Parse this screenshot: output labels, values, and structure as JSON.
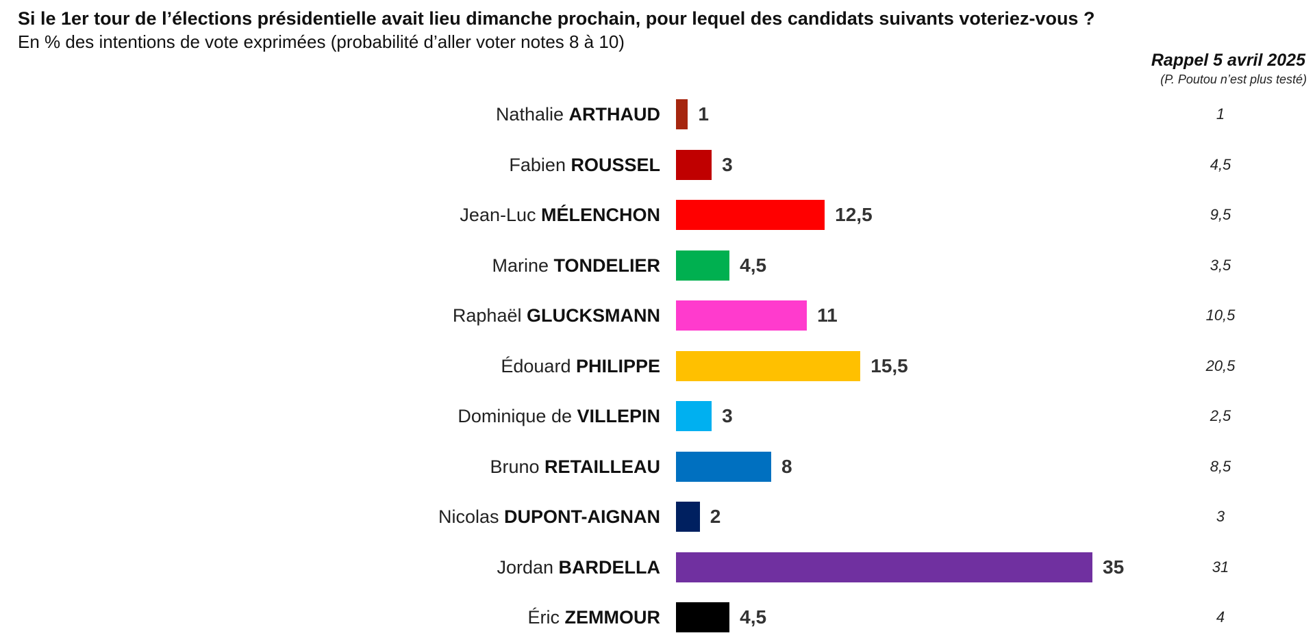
{
  "chart_data": {
    "type": "bar",
    "orientation": "horizontal",
    "title": "Si le 1er tour de l’élections présidentielle avait lieu dimanche prochain, pour lequel des candidats suivants voteriez-vous ?",
    "subtitle": "En % des intentions de vote exprimées (probabilité d’aller voter notes 8 à 10)",
    "recall_title": "Rappel 5 avril 2025",
    "recall_note": "(P. Poutou n’est plus testé)",
    "xlim": [
      0,
      35
    ],
    "candidates": [
      {
        "first": "Nathalie",
        "last": "ARTHAUD",
        "value": 1,
        "label": "1",
        "recall": "1",
        "color": "#A6260F"
      },
      {
        "first": "Fabien",
        "last": "ROUSSEL",
        "value": 3,
        "label": "3",
        "recall": "4,5",
        "color": "#C00000"
      },
      {
        "first": "Jean-Luc",
        "last": "MÉLENCHON",
        "value": 12.5,
        "label": "12,5",
        "recall": "9,5",
        "color": "#FF0000"
      },
      {
        "first": "Marine",
        "last": "TONDELIER",
        "value": 4.5,
        "label": "4,5",
        "recall": "3,5",
        "color": "#00B050"
      },
      {
        "first": "Raphaël",
        "last": "GLUCKSMANN",
        "value": 11,
        "label": "11",
        "recall": "10,5",
        "color": "#FF3BCD"
      },
      {
        "first": "Édouard",
        "last": "PHILIPPE",
        "value": 15.5,
        "label": "15,5",
        "recall": "20,5",
        "color": "#FFC000"
      },
      {
        "first": "Dominique de",
        "last": "VILLEPIN",
        "value": 3,
        "label": "3",
        "recall": "2,5",
        "color": "#00B0F0"
      },
      {
        "first": "Bruno",
        "last": "RETAILLEAU",
        "value": 8,
        "label": "8",
        "recall": "8,5",
        "color": "#0070C0"
      },
      {
        "first": "Nicolas",
        "last": "DUPONT-AIGNAN",
        "value": 2,
        "label": "2",
        "recall": "3",
        "color": "#002060"
      },
      {
        "first": "Jordan",
        "last": "BARDELLA",
        "value": 35,
        "label": "35",
        "recall": "31",
        "color": "#7030A0"
      },
      {
        "first": "Éric",
        "last": "ZEMMOUR",
        "value": 4.5,
        "label": "4,5",
        "recall": "4",
        "color": "#000000"
      }
    ]
  }
}
